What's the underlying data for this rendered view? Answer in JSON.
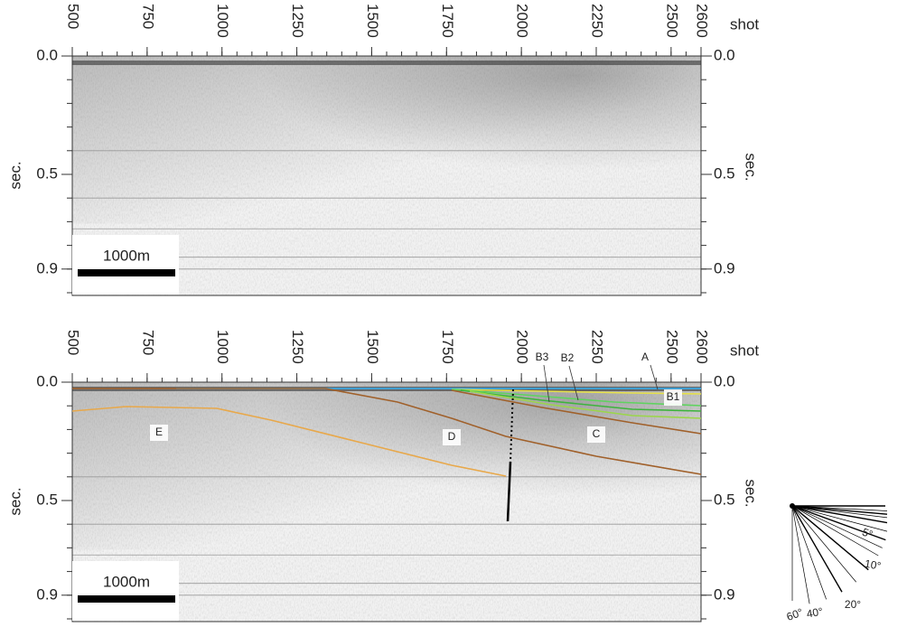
{
  "panels": [
    {
      "shot_axis": {
        "label": "shot",
        "ticks": [
          500,
          750,
          1000,
          1250,
          1500,
          1750,
          2000,
          2250,
          2500,
          2600
        ]
      },
      "time_axis": {
        "label": "sec.",
        "ticks": [
          {
            "value": 0,
            "label": "0.0"
          },
          {
            "value": 0.5,
            "label": "0.5"
          },
          {
            "value": 0.9,
            "label": "0.9"
          }
        ]
      },
      "scale_bar": "1000m"
    },
    {
      "shot_axis": {
        "label": "shot",
        "ticks": [
          500,
          750,
          1000,
          1250,
          1500,
          1750,
          2000,
          2250,
          2500,
          2600
        ]
      },
      "time_axis": {
        "label": "sec.",
        "ticks": [
          {
            "value": 0,
            "label": "0.0"
          },
          {
            "value": 0.5,
            "label": "0.5"
          },
          {
            "value": 0.9,
            "label": "0.9"
          }
        ]
      },
      "scale_bar": "1000m",
      "horizon_labels": [
        "A",
        "B1",
        "B2",
        "B3",
        "C",
        "D",
        "E"
      ]
    }
  ],
  "angle_legend": {
    "labels": [
      "5°",
      "10°",
      "20°",
      "40°",
      "60°"
    ]
  }
}
